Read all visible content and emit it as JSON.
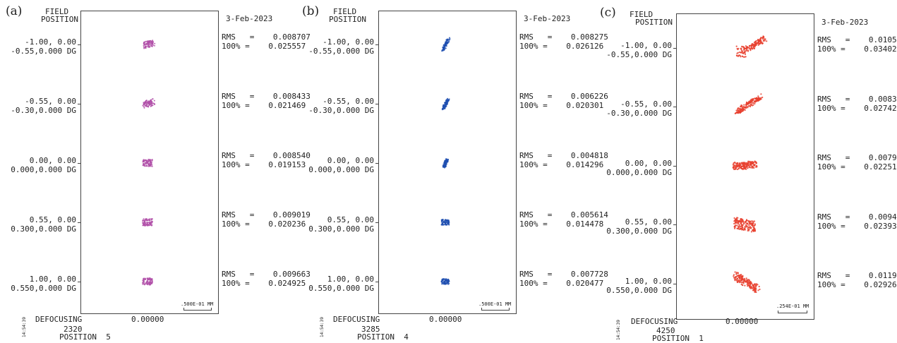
{
  "date": "3-Feb-2023",
  "field_header_1": "FIELD",
  "field_header_2": "POSITION",
  "defocusing_label": "DEFOCUSING",
  "defocusing_value": "0.00000",
  "rms_label": "RMS   =",
  "pct_label": "100% =",
  "panels": [
    {
      "label": "(a)",
      "color": "#b04fa8",
      "scale_text": ".500E-01 MM",
      "time": "14:54:39",
      "config_number": "2320",
      "position_text": "POSITION  5",
      "fields": [
        {
          "line1": "-1.00, 0.00",
          "line2": "-0.55,0.000 DG",
          "rms": "0.008707",
          "pct": "0.025557"
        },
        {
          "line1": "-0.55, 0.00",
          "line2": "-0.30,0.000 DG",
          "rms": "0.008433",
          "pct": "0.021469"
        },
        {
          "line1": "0.00, 0.00",
          "line2": "0.000,0.000 DG",
          "rms": "0.008540",
          "pct": "0.019153"
        },
        {
          "line1": "0.55, 0.00",
          "line2": "0.300,0.000 DG",
          "rms": "0.009019",
          "pct": "0.020236"
        },
        {
          "line1": "1.00, 0.00",
          "line2": "0.550,0.000 DG",
          "rms": "0.009663",
          "pct": "0.024925"
        }
      ]
    },
    {
      "label": "(b)",
      "color": "#1f4fb0",
      "scale_text": ".500E-01 MM",
      "time": "14:54:39",
      "config_number": "3285",
      "position_text": "POSITION  4",
      "fields": [
        {
          "line1": "-1.00, 0.00",
          "line2": "-0.55,0.000 DG",
          "rms": "0.008275",
          "pct": "0.026126"
        },
        {
          "line1": "-0.55, 0.00",
          "line2": "-0.30,0.000 DG",
          "rms": "0.006226",
          "pct": "0.020301"
        },
        {
          "line1": "0.00, 0.00",
          "line2": "0.000,0.000 DG",
          "rms": "0.004818",
          "pct": "0.014296"
        },
        {
          "line1": "0.55, 0.00",
          "line2": "0.300,0.000 DG",
          "rms": "0.005614",
          "pct": "0.014478"
        },
        {
          "line1": "1.00, 0.00",
          "line2": "0.550,0.000 DG",
          "rms": "0.007728",
          "pct": "0.020477"
        }
      ]
    },
    {
      "label": "(c)",
      "color": "#e8402e",
      "scale_text": ".254E-01 MM",
      "time": "14:54:39",
      "config_number": "4250",
      "position_text": "POSITION  1",
      "fields": [
        {
          "line1": "-1.00, 0.00",
          "line2": "-0.55,0.000 DG",
          "rms": "0.010500",
          "pct": "0.034025"
        },
        {
          "line1": "-0.55, 0.00",
          "line2": "-0.30,0.000 DG",
          "rms": "0.008349",
          "pct": "0.027427"
        },
        {
          "line1": "0.00, 0.00",
          "line2": "0.000,0.000 DG",
          "rms": "0.007957",
          "pct": "0.022517"
        },
        {
          "line1": "0.55, 0.00",
          "line2": "0.300,0.000 DG",
          "rms": "0.009476",
          "pct": "0.023938"
        },
        {
          "line1": "1.00, 0.00",
          "line2": "0.550,0.000 DG",
          "rms": "0.011973",
          "pct": "0.029265"
        }
      ]
    }
  ]
}
